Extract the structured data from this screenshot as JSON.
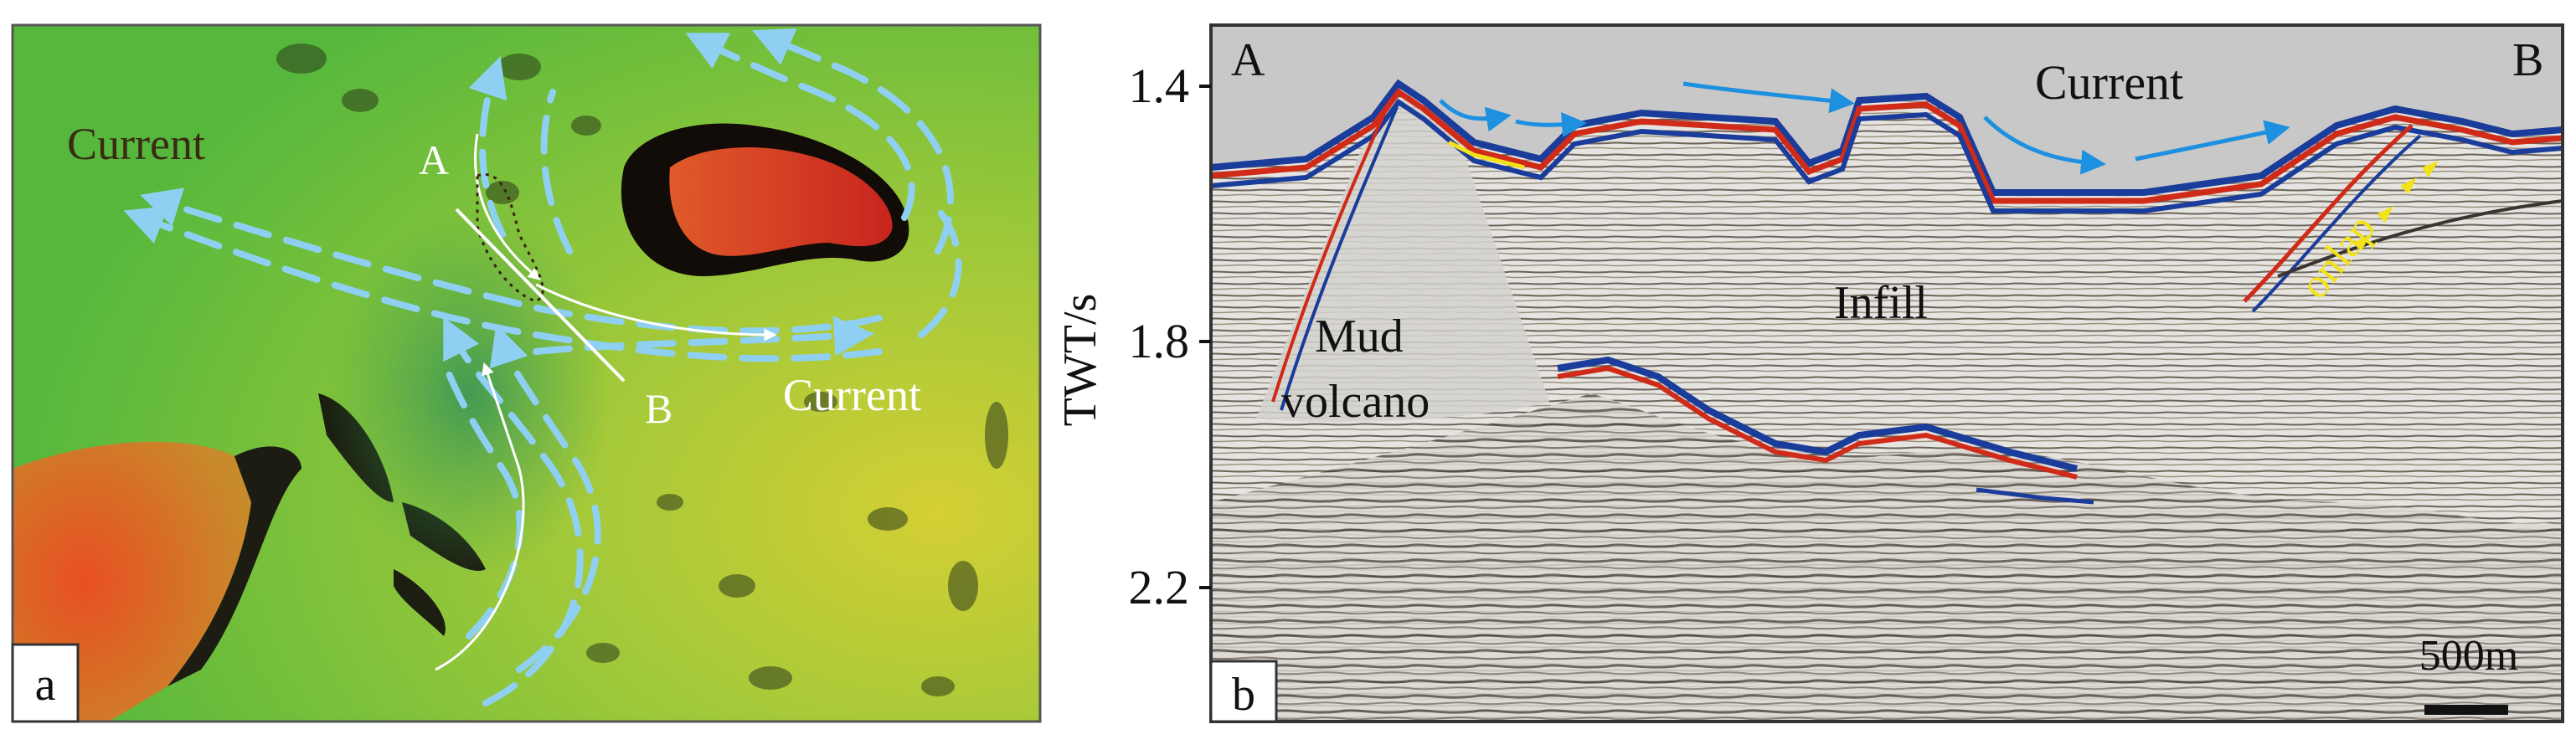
{
  "panel_a": {
    "panel_label": "a",
    "labels": {
      "current_left": "Current",
      "current_right": "Current",
      "point_a": "A",
      "point_b": "B"
    },
    "colors": {
      "background_green": "#5fbf3e",
      "yellow": "#d8d030",
      "orange": "#e8722a",
      "red": "#d83a22",
      "arrow": "#8fd0f2"
    }
  },
  "panel_b": {
    "panel_label": "b",
    "axis_label": "TWT/s",
    "ticks": [
      "1.4",
      "1.8",
      "2.2"
    ],
    "labels": {
      "endpoint_a": "A",
      "endpoint_b": "B",
      "current": "Current",
      "mud_volcano_1": "Mud",
      "mud_volcano_2": "volcano",
      "infill": "Infill",
      "onlap": "onlap",
      "scale": "500m"
    },
    "colors": {
      "water": "#c8c8c8",
      "arrow": "#1e90e0",
      "onlap": "#f3e21a",
      "red_reflector": "#d02a18",
      "blue_reflector": "#1a3c9a"
    }
  }
}
